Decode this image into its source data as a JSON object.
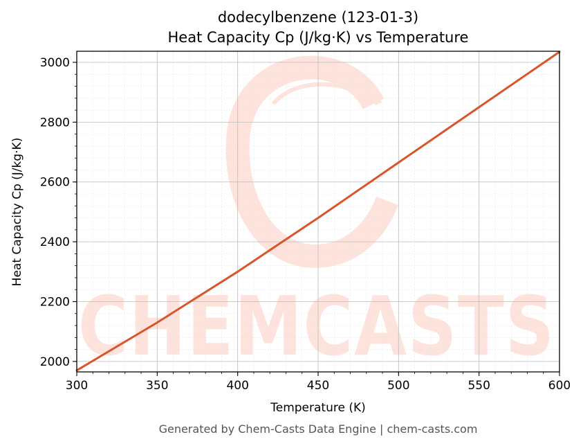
{
  "chart_data": {
    "type": "line",
    "title": "dodecylbenzene (123-01-3)",
    "subtitle": "Heat Capacity Cp (J/kg·K) vs Temperature",
    "xlabel": "Temperature (K)",
    "ylabel": "Heat Capacity Cp (J/kg·K)",
    "xlim": [
      300,
      600
    ],
    "ylim": [
      1965,
      3037
    ],
    "x_ticks": [
      300,
      350,
      400,
      450,
      500,
      550,
      600
    ],
    "y_ticks": [
      2000,
      2200,
      2400,
      2600,
      2800,
      3000
    ],
    "grid": true,
    "series": [
      {
        "color": "#d9542a",
        "x": [
          300,
          350,
          400,
          450,
          500,
          550,
          600
        ],
        "y": [
          1970,
          2130,
          2300,
          2480,
          2665,
          2850,
          3035
        ]
      }
    ]
  },
  "watermark": {
    "text": "CHEMCASTS",
    "color": "#fde3dc"
  },
  "footer": "Generated by Chem-Casts Data Engine | chem-casts.com"
}
